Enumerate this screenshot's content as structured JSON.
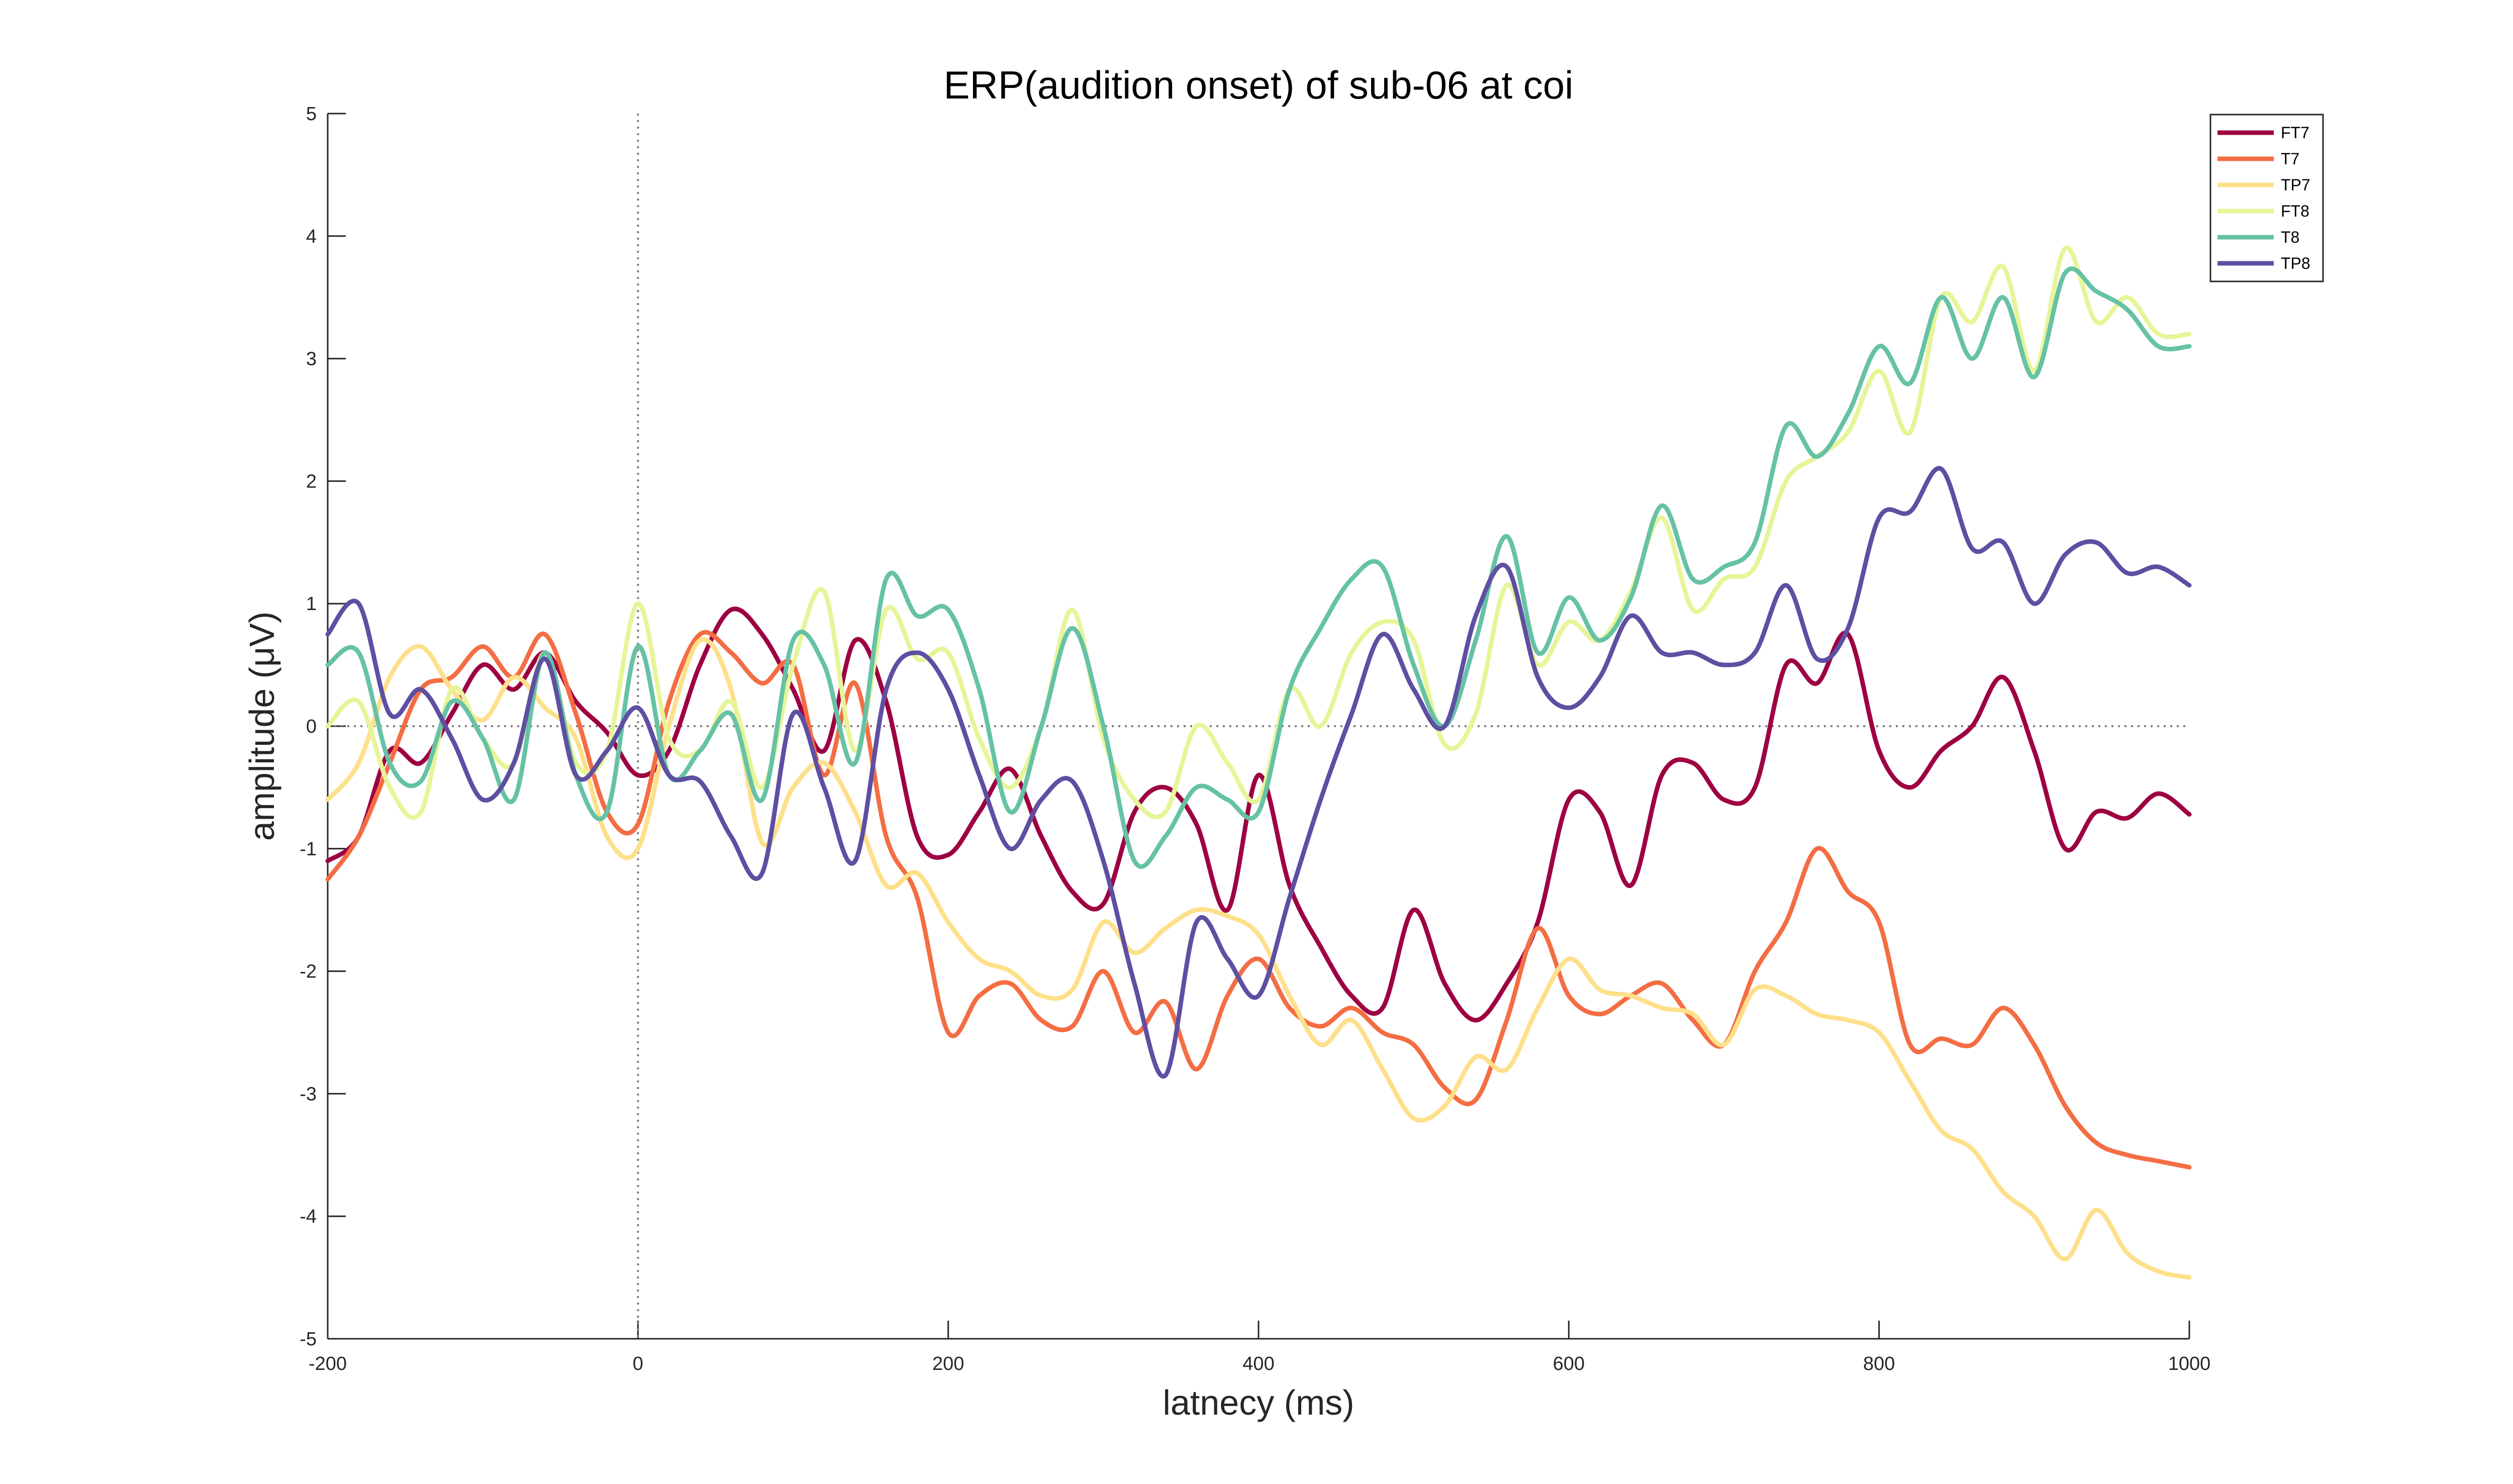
{
  "colors": {
    "FT7": "#9E0142",
    "T7": "#F46D43",
    "TP7": "#FEE08B",
    "FT8": "#E6F598",
    "T8": "#66C2A5",
    "TP8": "#5E4FA2",
    "axis": "#262626",
    "zero_line": "#808080"
  },
  "chart_data": {
    "type": "line",
    "title": "ERP(audition onset) of sub-06 at coi",
    "xlabel": "latnecy (ms)",
    "ylabel": "amplitude (μV)",
    "xlim": [
      -200,
      1000
    ],
    "ylim": [
      -5,
      5
    ],
    "xticks": [
      -200,
      0,
      200,
      400,
      600,
      800,
      1000
    ],
    "xtick_labels": [
      "-200",
      "0",
      "200",
      "400",
      "600",
      "800",
      "1000"
    ],
    "yticks": [
      -5,
      -4,
      -3,
      -2,
      -1,
      0,
      1,
      2,
      3,
      4,
      5
    ],
    "ytick_labels": [
      "-5",
      "-4",
      "-3",
      "-2",
      "-1",
      "0",
      "1",
      "2",
      "3",
      "4",
      "5"
    ],
    "reference_lines": {
      "x": 0,
      "y": 0,
      "style": "dotted"
    },
    "legend_position": "top-right",
    "grid": false,
    "x": [
      -200,
      -180,
      -160,
      -140,
      -120,
      -100,
      -80,
      -60,
      -40,
      -20,
      0,
      20,
      40,
      60,
      80,
      100,
      120,
      140,
      160,
      180,
      200,
      220,
      240,
      260,
      280,
      300,
      320,
      340,
      360,
      380,
      400,
      420,
      440,
      460,
      480,
      500,
      520,
      540,
      560,
      580,
      600,
      620,
      640,
      660,
      680,
      700,
      720,
      740,
      760,
      780,
      800,
      820,
      840,
      860,
      880,
      900,
      920,
      940,
      960,
      980,
      1000
    ],
    "series": [
      {
        "name": "FT7",
        "values": [
          -1.1,
          -0.9,
          -0.2,
          -0.3,
          0.1,
          0.5,
          0.3,
          0.6,
          0.2,
          -0.05,
          -0.4,
          -0.2,
          0.5,
          0.95,
          0.75,
          0.3,
          -0.2,
          0.7,
          0.2,
          -0.9,
          -1.05,
          -0.7,
          -0.35,
          -0.9,
          -1.35,
          -1.45,
          -0.7,
          -0.5,
          -0.8,
          -1.5,
          -0.4,
          -1.3,
          -1.8,
          -2.2,
          -2.3,
          -1.5,
          -2.1,
          -2.4,
          -2.1,
          -1.6,
          -0.6,
          -0.7,
          -1.3,
          -0.4,
          -0.3,
          -0.6,
          -0.5,
          0.5,
          0.35,
          0.75,
          -0.2,
          -0.5,
          -0.2,
          0.0,
          0.4,
          -0.2,
          -1.0,
          -0.7,
          -0.75,
          -0.55,
          -0.72
        ]
      },
      {
        "name": "T7",
        "values": [
          -1.25,
          -0.9,
          -0.3,
          0.3,
          0.4,
          0.65,
          0.4,
          0.75,
          0.1,
          -0.7,
          -0.8,
          0.2,
          0.75,
          0.6,
          0.35,
          0.5,
          -0.4,
          0.35,
          -0.9,
          -1.4,
          -2.5,
          -2.2,
          -2.1,
          -2.4,
          -2.45,
          -2.0,
          -2.5,
          -2.25,
          -2.8,
          -2.2,
          -1.9,
          -2.3,
          -2.45,
          -2.3,
          -2.5,
          -2.6,
          -2.95,
          -3.05,
          -2.4,
          -1.65,
          -2.2,
          -2.35,
          -2.2,
          -2.1,
          -2.4,
          -2.6,
          -2.0,
          -1.6,
          -1.0,
          -1.35,
          -1.6,
          -2.6,
          -2.55,
          -2.6,
          -2.3,
          -2.6,
          -3.1,
          -3.4,
          -3.5,
          -3.55,
          -3.6
        ]
      },
      {
        "name": "TP7",
        "values": [
          -0.6,
          -0.3,
          0.4,
          0.65,
          0.3,
          0.05,
          0.4,
          0.15,
          -0.1,
          -0.9,
          -1.0,
          0.0,
          0.7,
          0.3,
          -0.95,
          -0.5,
          -0.3,
          -0.7,
          -1.3,
          -1.2,
          -1.6,
          -1.9,
          -2.0,
          -2.2,
          -2.15,
          -1.6,
          -1.85,
          -1.65,
          -1.5,
          -1.55,
          -1.7,
          -2.2,
          -2.6,
          -2.4,
          -2.8,
          -3.2,
          -3.1,
          -2.7,
          -2.8,
          -2.3,
          -1.9,
          -2.15,
          -2.2,
          -2.3,
          -2.35,
          -2.6,
          -2.15,
          -2.2,
          -2.35,
          -2.4,
          -2.5,
          -2.9,
          -3.3,
          -3.45,
          -3.8,
          -4.0,
          -4.35,
          -3.95,
          -4.3,
          -4.45,
          -4.5
        ]
      },
      {
        "name": "FT8",
        "values": [
          0.0,
          0.2,
          -0.5,
          -0.7,
          0.3,
          -0.1,
          -0.3,
          0.6,
          -0.3,
          -0.2,
          1.0,
          -0.1,
          -0.2,
          0.2,
          -0.5,
          0.5,
          1.1,
          -0.2,
          0.95,
          0.55,
          0.6,
          -0.1,
          -0.5,
          0.0,
          0.95,
          -0.1,
          -0.6,
          -0.7,
          0.0,
          -0.3,
          -0.6,
          0.3,
          0.0,
          0.6,
          0.85,
          0.7,
          -0.15,
          0.1,
          1.15,
          0.5,
          0.85,
          0.7,
          1.1,
          1.7,
          0.95,
          1.2,
          1.3,
          2.0,
          2.2,
          2.4,
          2.9,
          2.4,
          3.5,
          3.3,
          3.75,
          2.9,
          3.9,
          3.3,
          3.5,
          3.2,
          3.2
        ]
      },
      {
        "name": "T8",
        "values": [
          0.5,
          0.6,
          -0.3,
          -0.45,
          0.2,
          -0.1,
          -0.6,
          0.6,
          -0.4,
          -0.7,
          0.65,
          -0.4,
          -0.2,
          0.1,
          -0.6,
          0.7,
          0.5,
          -0.3,
          1.2,
          0.9,
          0.95,
          0.3,
          -0.7,
          0.0,
          0.8,
          0.0,
          -1.1,
          -0.9,
          -0.5,
          -0.6,
          -0.7,
          0.3,
          0.8,
          1.2,
          1.3,
          0.5,
          0.0,
          0.7,
          1.55,
          0.6,
          1.05,
          0.7,
          1.05,
          1.8,
          1.2,
          1.3,
          1.5,
          2.45,
          2.2,
          2.55,
          3.1,
          2.8,
          3.5,
          3.0,
          3.5,
          2.85,
          3.7,
          3.55,
          3.4,
          3.1,
          3.1
        ]
      },
      {
        "name": "TP8",
        "values": [
          0.75,
          1.0,
          0.1,
          0.3,
          -0.1,
          -0.6,
          -0.3,
          0.55,
          -0.4,
          -0.2,
          0.15,
          -0.4,
          -0.45,
          -0.9,
          -1.2,
          0.1,
          -0.5,
          -1.1,
          0.3,
          0.6,
          0.3,
          -0.4,
          -1.0,
          -0.6,
          -0.45,
          -1.1,
          -2.1,
          -2.85,
          -1.6,
          -1.9,
          -2.2,
          -1.4,
          -0.6,
          0.1,
          0.75,
          0.3,
          0.0,
          0.9,
          1.3,
          0.4,
          0.15,
          0.4,
          0.9,
          0.6,
          0.6,
          0.5,
          0.6,
          1.15,
          0.55,
          0.8,
          1.7,
          1.75,
          2.1,
          1.45,
          1.5,
          1.0,
          1.4,
          1.5,
          1.25,
          1.3,
          1.15
        ]
      }
    ]
  }
}
